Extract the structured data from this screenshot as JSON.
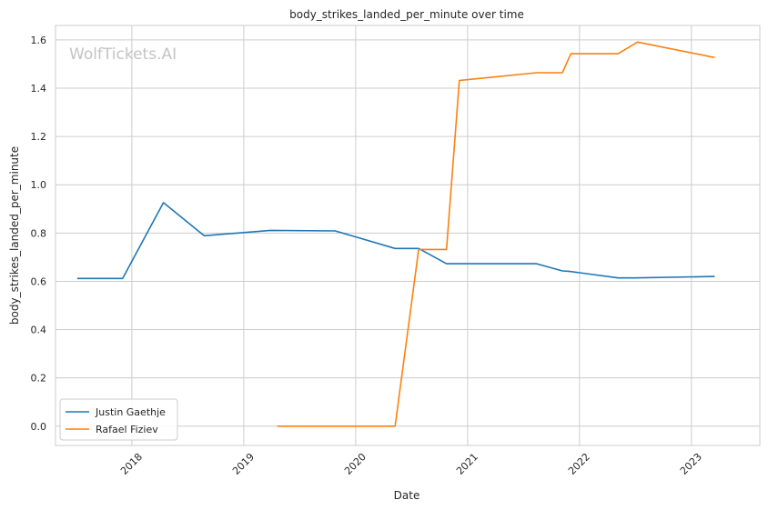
{
  "chart_data": {
    "type": "line",
    "title": "body_strikes_landed_per_minute over time",
    "xlabel": "Date",
    "ylabel": "body_strikes_landed_per_minute",
    "watermark": "WolfTickets.AI",
    "x_ticks": [
      "2018",
      "2019",
      "2020",
      "2021",
      "2022",
      "2023"
    ],
    "y_ticks": [
      "0.0",
      "0.2",
      "0.4",
      "0.6",
      "0.8",
      "1.0",
      "1.2",
      "1.4",
      "1.6"
    ],
    "ylim": [
      -0.08,
      1.66
    ],
    "xlim": [
      "2017-04-27",
      "2023-08-12"
    ],
    "grid": true,
    "legend_position": "lower-left",
    "series": [
      {
        "name": "Justin Gaethje",
        "color": "#1f77b4",
        "points": [
          {
            "x": "2017-07-07",
            "y": 0.612
          },
          {
            "x": "2017-12-02",
            "y": 0.612
          },
          {
            "x": "2018-04-14",
            "y": 0.926
          },
          {
            "x": "2018-08-25",
            "y": 0.789
          },
          {
            "x": "2019-03-30",
            "y": 0.811
          },
          {
            "x": "2019-10-26",
            "y": 0.809
          },
          {
            "x": "2020-05-09",
            "y": 0.736
          },
          {
            "x": "2020-07-25",
            "y": 0.736
          },
          {
            "x": "2020-10-24",
            "y": 0.673
          },
          {
            "x": "2021-08-14",
            "y": 0.673
          },
          {
            "x": "2021-11-06",
            "y": 0.643
          },
          {
            "x": "2021-12-01",
            "y": 0.641
          },
          {
            "x": "2022-05-07",
            "y": 0.614
          },
          {
            "x": "2022-06-30",
            "y": 0.614
          },
          {
            "x": "2023-03-18",
            "y": 0.62
          }
        ]
      },
      {
        "name": "Rafael Fiziev",
        "color": "#ff7f0e",
        "points": [
          {
            "x": "2019-04-20",
            "y": 0.0
          },
          {
            "x": "2020-05-09",
            "y": 0.0
          },
          {
            "x": "2020-07-25",
            "y": 0.732
          },
          {
            "x": "2020-10-24",
            "y": 0.732
          },
          {
            "x": "2020-12-05",
            "y": 1.432
          },
          {
            "x": "2021-08-14",
            "y": 1.464
          },
          {
            "x": "2021-11-06",
            "y": 1.464
          },
          {
            "x": "2021-12-04",
            "y": 1.543
          },
          {
            "x": "2022-05-07",
            "y": 1.543
          },
          {
            "x": "2022-07-09",
            "y": 1.591
          },
          {
            "x": "2023-03-18",
            "y": 1.527
          }
        ]
      }
    ]
  }
}
